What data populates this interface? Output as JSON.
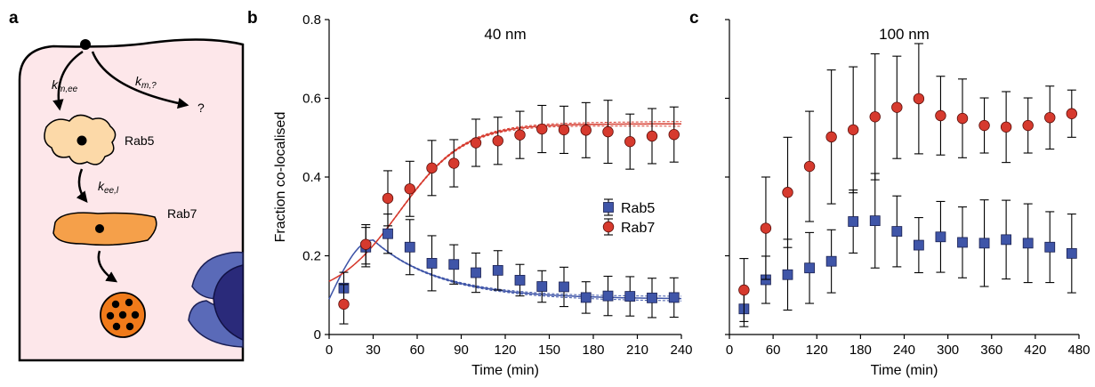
{
  "figure": {
    "panel_letters": [
      "a",
      "b",
      "c"
    ]
  },
  "schematic": {
    "labels": {
      "k_m_ee": "k",
      "k_m_ee_sub": "m,ee",
      "k_m_q": "k",
      "k_m_q_sub": "m,?",
      "unknown": "?",
      "rab5": "Rab5",
      "k_ee_l": "k",
      "k_ee_l_sub": "ee,l",
      "rab7": "Rab7"
    },
    "colors": {
      "cell_fill": "#fde7ea",
      "early_endosome": "#fcd9a8",
      "late_endosome": "#f5a04a",
      "lysosome": "#f07a1a",
      "nucleus": "#2a2a7a",
      "er": "#5a6ab8"
    },
    "icons": [
      "cargo-particle-icon",
      "early-endosome-icon",
      "late-endosome-icon",
      "lysosome-icon",
      "nucleus-icon"
    ]
  },
  "chart_data": [
    {
      "type": "scatter",
      "title": "40 nm",
      "xlabel": "Time (min)",
      "ylabel": "Fraction co-localised",
      "xlim": [
        0,
        240
      ],
      "ylim": [
        0,
        0.8
      ],
      "xticks": [
        "0",
        "30",
        "60",
        "90",
        "120",
        "150",
        "180",
        "210",
        "240"
      ],
      "yticks": [
        "0",
        "0.2",
        "0.4",
        "0.6",
        "0.8"
      ],
      "legend": {
        "placement": "center-right",
        "entries": [
          "Rab5",
          "Rab7"
        ]
      },
      "series": [
        {
          "name": "Rab5",
          "marker": "square",
          "color": "#3f55a8",
          "x": [
            10,
            25,
            40,
            55,
            70,
            85,
            100,
            115,
            130,
            145,
            160,
            175,
            190,
            205,
            220,
            235
          ],
          "y": [
            0.118,
            0.222,
            0.256,
            0.222,
            0.181,
            0.178,
            0.157,
            0.163,
            0.138,
            0.122,
            0.121,
            0.094,
            0.098,
            0.097,
            0.093,
            0.094
          ],
          "err": [
            0.04,
            0.05,
            0.05,
            0.07,
            0.07,
            0.05,
            0.05,
            0.05,
            0.04,
            0.04,
            0.05,
            0.04,
            0.05,
            0.05,
            0.05,
            0.05
          ]
        },
        {
          "name": "Rab7",
          "marker": "circle",
          "color": "#d63a2e",
          "x": [
            10,
            25,
            40,
            55,
            70,
            85,
            100,
            115,
            130,
            145,
            160,
            175,
            190,
            205,
            220,
            235
          ],
          "y": [
            0.077,
            0.229,
            0.346,
            0.37,
            0.423,
            0.435,
            0.487,
            0.492,
            0.507,
            0.522,
            0.52,
            0.519,
            0.515,
            0.49,
            0.504,
            0.508
          ],
          "err": [
            0.05,
            0.05,
            0.07,
            0.07,
            0.07,
            0.06,
            0.06,
            0.06,
            0.06,
            0.06,
            0.06,
            0.07,
            0.08,
            0.07,
            0.07,
            0.07
          ]
        }
      ],
      "fits": [
        {
          "series": "Rab5",
          "color": "#3f55a8",
          "baseline": 0.09,
          "peak": 0.24,
          "peak_x": 30,
          "tail": 0.09,
          "decay": 45
        },
        {
          "series": "Rab7",
          "color": "#d63a2e",
          "start": 0.09,
          "plateau": 0.535,
          "midpoint": 48,
          "width": 22
        }
      ]
    },
    {
      "type": "scatter",
      "title": "100 nm",
      "xlabel": "Time (min)",
      "ylabel": "",
      "xlim": [
        0,
        480
      ],
      "ylim": [
        0,
        0.8
      ],
      "xticks": [
        "0",
        "60",
        "120",
        "180",
        "240",
        "300",
        "360",
        "420",
        "480"
      ],
      "series": [
        {
          "name": "Rab5",
          "marker": "square",
          "color": "#3f55a8",
          "x": [
            20,
            50,
            80,
            110,
            140,
            170,
            200,
            230,
            260,
            290,
            320,
            350,
            380,
            410,
            440,
            470
          ],
          "y": [
            0.065,
            0.139,
            0.152,
            0.169,
            0.186,
            0.287,
            0.289,
            0.262,
            0.227,
            0.248,
            0.234,
            0.232,
            0.241,
            0.232,
            0.222,
            0.206
          ],
          "err": [
            0.045,
            0.06,
            0.09,
            0.09,
            0.08,
            0.08,
            0.12,
            0.09,
            0.07,
            0.09,
            0.09,
            0.11,
            0.1,
            0.1,
            0.09,
            0.1
          ]
        },
        {
          "name": "Rab7",
          "marker": "circle",
          "color": "#d63a2e",
          "x": [
            20,
            50,
            80,
            110,
            140,
            170,
            200,
            230,
            260,
            290,
            320,
            350,
            380,
            410,
            440,
            470
          ],
          "y": [
            0.113,
            0.27,
            0.361,
            0.427,
            0.502,
            0.52,
            0.553,
            0.577,
            0.599,
            0.556,
            0.549,
            0.531,
            0.527,
            0.531,
            0.551,
            0.561
          ],
          "err": [
            0.08,
            0.13,
            0.14,
            0.14,
            0.17,
            0.16,
            0.16,
            0.13,
            0.14,
            0.1,
            0.1,
            0.07,
            0.09,
            0.07,
            0.08,
            0.06
          ]
        }
      ]
    }
  ]
}
